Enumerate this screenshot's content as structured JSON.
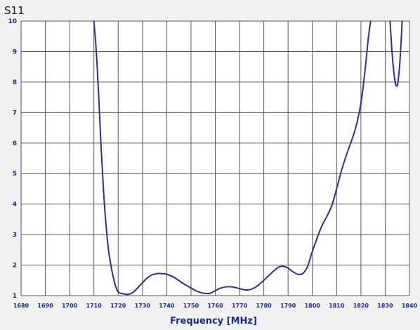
{
  "chart_data": {
    "type": "line",
    "title": "S11",
    "xlabel": "Frequency [MHz]",
    "ylabel": "",
    "xlim": [
      1680,
      1840
    ],
    "ylim": [
      1,
      10
    ],
    "xticks": [
      1680,
      1690,
      1700,
      1710,
      1720,
      1730,
      1740,
      1750,
      1760,
      1770,
      1780,
      1790,
      1800,
      1810,
      1820,
      1830,
      1840
    ],
    "yticks": [
      1,
      2,
      3,
      4,
      5,
      6,
      7,
      8,
      9,
      10
    ],
    "xtick_labels": [
      "1680",
      "1690",
      "1700",
      "1710",
      "1720",
      "1730",
      "1740",
      "1750",
      "1760",
      "1770",
      "1780",
      "1790",
      "1800",
      "1810",
      "1820",
      "1830",
      "1840"
    ],
    "ytick_labels": [
      "1",
      "2",
      "3",
      "4",
      "5",
      "6",
      "7",
      "8",
      "9",
      "10"
    ],
    "grid": true,
    "colors": {
      "line": "#2b2f9e",
      "grid": "#555555",
      "plot_bg": "#ffffff",
      "axis_text": "#1c2a8a"
    },
    "series": [
      {
        "x": [
          1710,
          1711,
          1712,
          1713,
          1714,
          1715,
          1716,
          1717,
          1718,
          1719,
          1720,
          1722,
          1724,
          1726,
          1728,
          1730,
          1732,
          1734,
          1736,
          1738,
          1740,
          1742,
          1744,
          1746,
          1748,
          1750,
          1752,
          1754,
          1756,
          1758,
          1760,
          1762,
          1764,
          1766,
          1768,
          1770,
          1772,
          1774,
          1776,
          1778,
          1780,
          1782,
          1784,
          1786,
          1788,
          1790,
          1792,
          1794,
          1796,
          1798,
          1800,
          1802,
          1804,
          1806,
          1808,
          1810,
          1812,
          1814,
          1816,
          1818,
          1820,
          1821,
          1822,
          1823,
          1824
        ],
        "y": [
          10,
          9.0,
          7.5,
          5.8,
          4.4,
          3.3,
          2.5,
          2.0,
          1.6,
          1.3,
          1.12,
          1.06,
          1.04,
          1.1,
          1.25,
          1.42,
          1.58,
          1.68,
          1.72,
          1.72,
          1.7,
          1.64,
          1.55,
          1.44,
          1.34,
          1.25,
          1.16,
          1.1,
          1.07,
          1.08,
          1.16,
          1.24,
          1.28,
          1.29,
          1.27,
          1.23,
          1.19,
          1.19,
          1.25,
          1.36,
          1.5,
          1.65,
          1.8,
          1.93,
          1.96,
          1.9,
          1.78,
          1.7,
          1.72,
          1.95,
          2.45,
          2.9,
          3.3,
          3.6,
          3.95,
          4.5,
          5.1,
          5.6,
          6.05,
          6.55,
          7.3,
          7.9,
          8.6,
          9.4,
          10
        ]
      },
      {
        "x": [
          1832,
          1833,
          1834,
          1835,
          1836,
          1837
        ],
        "y": [
          10,
          8.8,
          8.05,
          7.9,
          8.6,
          10
        ]
      }
    ]
  }
}
